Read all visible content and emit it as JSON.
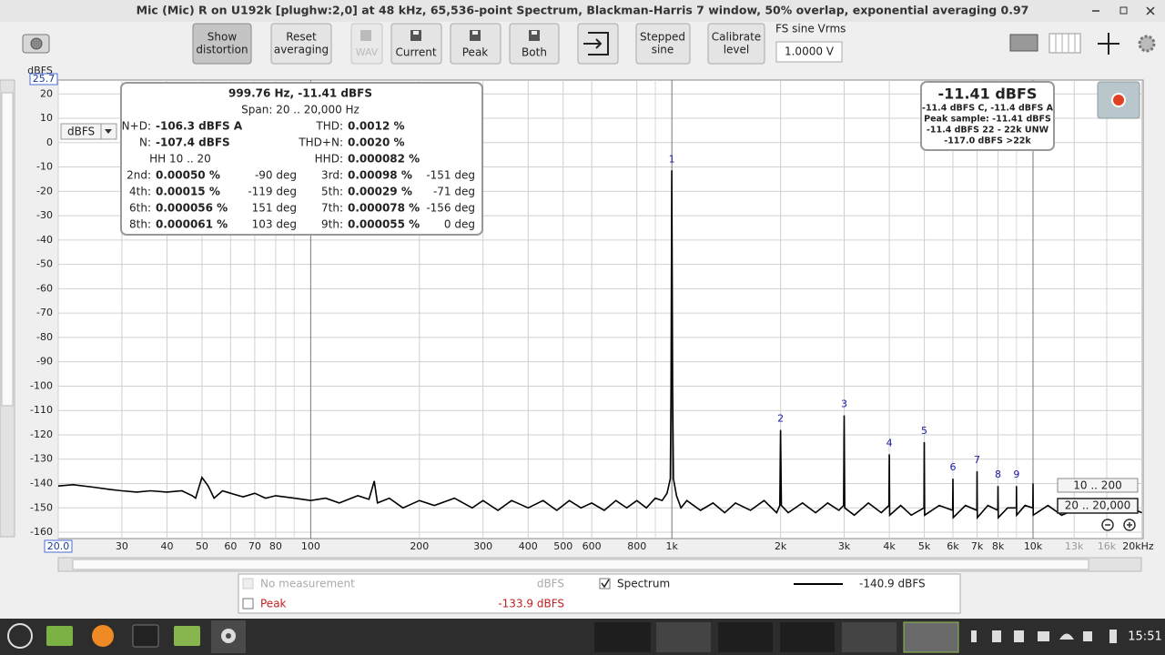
{
  "window": {
    "title": "Mic (Mic) R on U192k [plughw:2,0] at 48 kHz, 65,536-point Spectrum, Blackman-Harris 7 window, 50% overlap, exponential averaging 0.97",
    "time": "15:51"
  },
  "toolbar": {
    "buttons": [
      [
        "Show",
        "distortion"
      ],
      [
        "Reset",
        "averaging"
      ],
      [
        "WAV"
      ],
      [
        "Current"
      ],
      [
        "Peak"
      ],
      [
        "Both"
      ],
      [
        "Stepped",
        "sine"
      ],
      [
        "Calibrate",
        "level"
      ]
    ],
    "fs_label": "FS sine Vrms",
    "fs_value": "1.0000 V"
  },
  "plot": {
    "y_unit": "dBFS",
    "y_top_label": "25.7",
    "unit_select": "dBFS",
    "ylim": [
      -162.6,
      25.7
    ],
    "yticks": [
      20,
      10,
      0,
      -10,
      -20,
      -30,
      -40,
      -50,
      -60,
      -70,
      -80,
      -90,
      -100,
      -110,
      -120,
      -130,
      -140,
      -150,
      -160
    ],
    "xlim": [
      20,
      20180
    ],
    "log_x": true,
    "grid": true,
    "xticks": [
      {
        "value": 20,
        "label": "20.0"
      },
      30,
      40,
      50,
      60,
      70,
      80,
      100,
      200,
      300,
      400,
      500,
      600,
      800,
      {
        "value": 1000,
        "label": "1k"
      },
      {
        "value": 2000,
        "label": "2k"
      },
      {
        "value": 3000,
        "label": "3k"
      },
      {
        "value": 4000,
        "label": "4k"
      },
      {
        "value": 5000,
        "label": "5k"
      },
      {
        "value": 6000,
        "label": "6k"
      },
      {
        "value": 7000,
        "label": "7k"
      },
      {
        "value": 8000,
        "label": "8k"
      },
      {
        "value": 10000,
        "label": "10k"
      },
      {
        "value": 13000,
        "label": "13k",
        "color": "#9a9a9a"
      },
      {
        "value": 16000,
        "label": "16k",
        "color": "#9a9a9a"
      },
      {
        "value": 20000,
        "label": "20kHz"
      }
    ],
    "xgrid_minor": [
      90,
      900,
      9000
    ],
    "trace": {
      "name": "Spectrum",
      "color": "#000000",
      "x": [
        20,
        22,
        25,
        28,
        30,
        33,
        36,
        40,
        44,
        47,
        48,
        50,
        52,
        54,
        57,
        60,
        65,
        70,
        75,
        80,
        90,
        100,
        110,
        120,
        135,
        145,
        150,
        153,
        165,
        180,
        200,
        220,
        250,
        280,
        300,
        330,
        360,
        400,
        440,
        480,
        520,
        560,
        600,
        650,
        700,
        750,
        800,
        850,
        900,
        940,
        970,
        990,
        995,
        999.76,
        1005,
        1010,
        1030,
        1060,
        1100,
        1200,
        1300,
        1400,
        1500,
        1650,
        1800,
        1950,
        1990,
        2000,
        2010,
        2100,
        2300,
        2500,
        2700,
        2900,
        2990,
        3000,
        3010,
        3200,
        3500,
        3800,
        3990,
        4000,
        4010,
        4300,
        4600,
        4990,
        5000,
        5010,
        5500,
        5990,
        6000,
        6010,
        6500,
        6990,
        7000,
        7010,
        7500,
        7990,
        8000,
        8010,
        8500,
        8990,
        9000,
        9010,
        9500,
        9990,
        10000,
        10010,
        11000,
        12000,
        14000,
        16000,
        18000,
        20000
      ],
      "values": [
        -141,
        -140.5,
        -141.5,
        -142.5,
        -143,
        -143.5,
        -143,
        -143.5,
        -143,
        -145,
        -146,
        -137.5,
        -141,
        -146,
        -143,
        -144,
        -145.5,
        -144,
        -146,
        -145,
        -146,
        -147,
        -146,
        -148,
        -145,
        -146.5,
        -139,
        -148,
        -146,
        -150,
        -147,
        -149,
        -146,
        -150,
        -147,
        -151,
        -147,
        -150,
        -147,
        -151,
        -147,
        -150,
        -148,
        -151,
        -147,
        -150,
        -147,
        -150,
        -146,
        -147,
        -144,
        -138,
        -100,
        -11.41,
        -100,
        -138,
        -145,
        -150,
        -147,
        -151,
        -148,
        -152,
        -148,
        -151,
        -147,
        -152,
        -149,
        -118,
        -149,
        -152,
        -148,
        -152,
        -148,
        -151,
        -149,
        -112,
        -150,
        -153,
        -148,
        -152,
        -149,
        -128,
        -153,
        -149,
        -153,
        -150,
        -123,
        -153,
        -149,
        -151,
        -138,
        -154,
        -149,
        -151,
        -135,
        -154,
        -149,
        -151,
        -141,
        -154,
        -150,
        -150,
        -141,
        -153,
        -149,
        -150,
        -140,
        -153,
        -149,
        -153,
        -149,
        -152,
        -149,
        -152
      ]
    },
    "harmonics": {
      "labels": [
        "1",
        "2",
        "3",
        "4",
        "5",
        "6",
        "7",
        "8",
        "9"
      ],
      "color": "#1a1aa0",
      "x": [
        1000,
        2000,
        3000,
        4000,
        5000,
        6000,
        7000,
        8000,
        9000
      ],
      "values": [
        -11.41,
        -118,
        -112,
        -128,
        -123,
        -138,
        -135,
        -141,
        -141
      ]
    },
    "ranges": [
      "10 .. 200",
      "20 .. 20,000"
    ]
  },
  "info": {
    "header": "999.76 Hz, -11.41 dBFS",
    "span": "Span: 20 .. 20,000 Hz",
    "rows": [
      [
        "N+D:",
        "-106.3 dBFS A",
        "THD:",
        "0.0012 %"
      ],
      [
        "N:",
        "-107.4 dBFS",
        "THD+N:",
        "0.0020 %"
      ]
    ],
    "hh": "HH 10 .. 20",
    "hhd": [
      "HHD:",
      "0.000082 %"
    ],
    "harmonics": [
      [
        "2nd:",
        "0.00050 %",
        "-90 deg",
        "3rd:",
        "0.00098 %",
        "-151 deg"
      ],
      [
        "4th:",
        "0.00015 %",
        "-119 deg",
        "5th:",
        "0.00029 %",
        "-71 deg"
      ],
      [
        "6th:",
        "0.000056 %",
        "151 deg",
        "7th:",
        "0.000078 %",
        "-156 deg"
      ],
      [
        "8th:",
        "0.000061 %",
        "103 deg",
        "9th:",
        "0.000055 %",
        "0 deg"
      ]
    ]
  },
  "level_box": {
    "main": "-11.41 dBFS",
    "lines": [
      "-11.4 dBFS C, -11.4 dBFS A",
      "Peak sample: -11.41 dBFS",
      "-11.4 dBFS 22 - 22k UNW",
      "-117.0 dBFS >22k"
    ]
  },
  "legend": {
    "rows": [
      {
        "label": "No measurement",
        "value": "dBFS"
      },
      {
        "label": "Spectrum",
        "value": "-140.9 dBFS"
      },
      {
        "label": "Peak",
        "value": "-133.9 dBFS"
      }
    ]
  }
}
